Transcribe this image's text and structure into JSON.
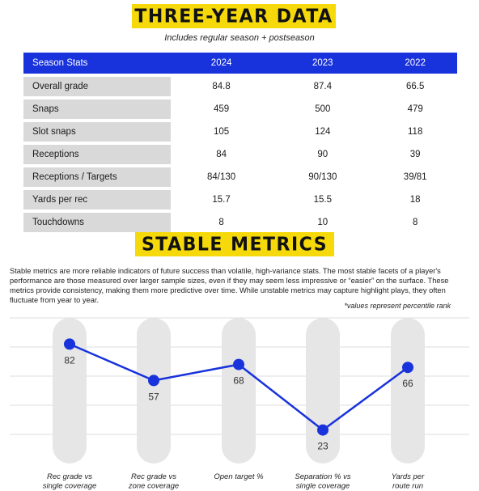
{
  "section1": {
    "title": "THREE-YEAR DATA",
    "subtitle": "Includes regular season + postseason",
    "table": {
      "headers": [
        "Season Stats",
        "2024",
        "2023",
        "2022"
      ],
      "rows": [
        {
          "label": "Overall grade",
          "values": [
            "84.8",
            "87.4",
            "66.5"
          ]
        },
        {
          "label": "Snaps",
          "values": [
            "459",
            "500",
            "479"
          ]
        },
        {
          "label": "Slot snaps",
          "values": [
            "105",
            "124",
            "118"
          ]
        },
        {
          "label": "Receptions",
          "values": [
            "84",
            "90",
            "39"
          ]
        },
        {
          "label": "Receptions / Targets",
          "values": [
            "84/130",
            "90/130",
            "39/81"
          ]
        },
        {
          "label": "Yards per rec",
          "values": [
            "15.7",
            "15.5",
            "18"
          ]
        },
        {
          "label": "Touchdowns",
          "values": [
            "8",
            "10",
            "8"
          ]
        }
      ]
    }
  },
  "section2": {
    "title": "STABLE METRICS",
    "description": "Stable metrics are more reliable indicators of future success than volatile, high-variance stats. The most stable facets of a player's performance are those measured over larger sample sizes, even if they may seem less impressive or “easier” on the surface. These metrics provide consistency, making them more predictive over time. While unstable metrics may capture highlight plays, they often fluctuate from year to year.",
    "note": "*values represent percentile rank"
  },
  "colors": {
    "accent_yellow": "#f5d90a",
    "accent_blue": "#1832dc",
    "label_gray": "#d9d9d9",
    "bar_gray": "#e6e6e6"
  },
  "chart_data": {
    "type": "line",
    "categories": [
      [
        "Rec grade vs",
        "single coverage"
      ],
      [
        "Rec grade vs",
        "zone coverage"
      ],
      [
        "Open target %"
      ],
      [
        "Separation % vs",
        "single coverage"
      ],
      [
        "Yards per",
        "route run"
      ]
    ],
    "values": [
      82,
      57,
      68,
      23,
      66
    ],
    "ylim": [
      0,
      100
    ],
    "grid": true
  }
}
